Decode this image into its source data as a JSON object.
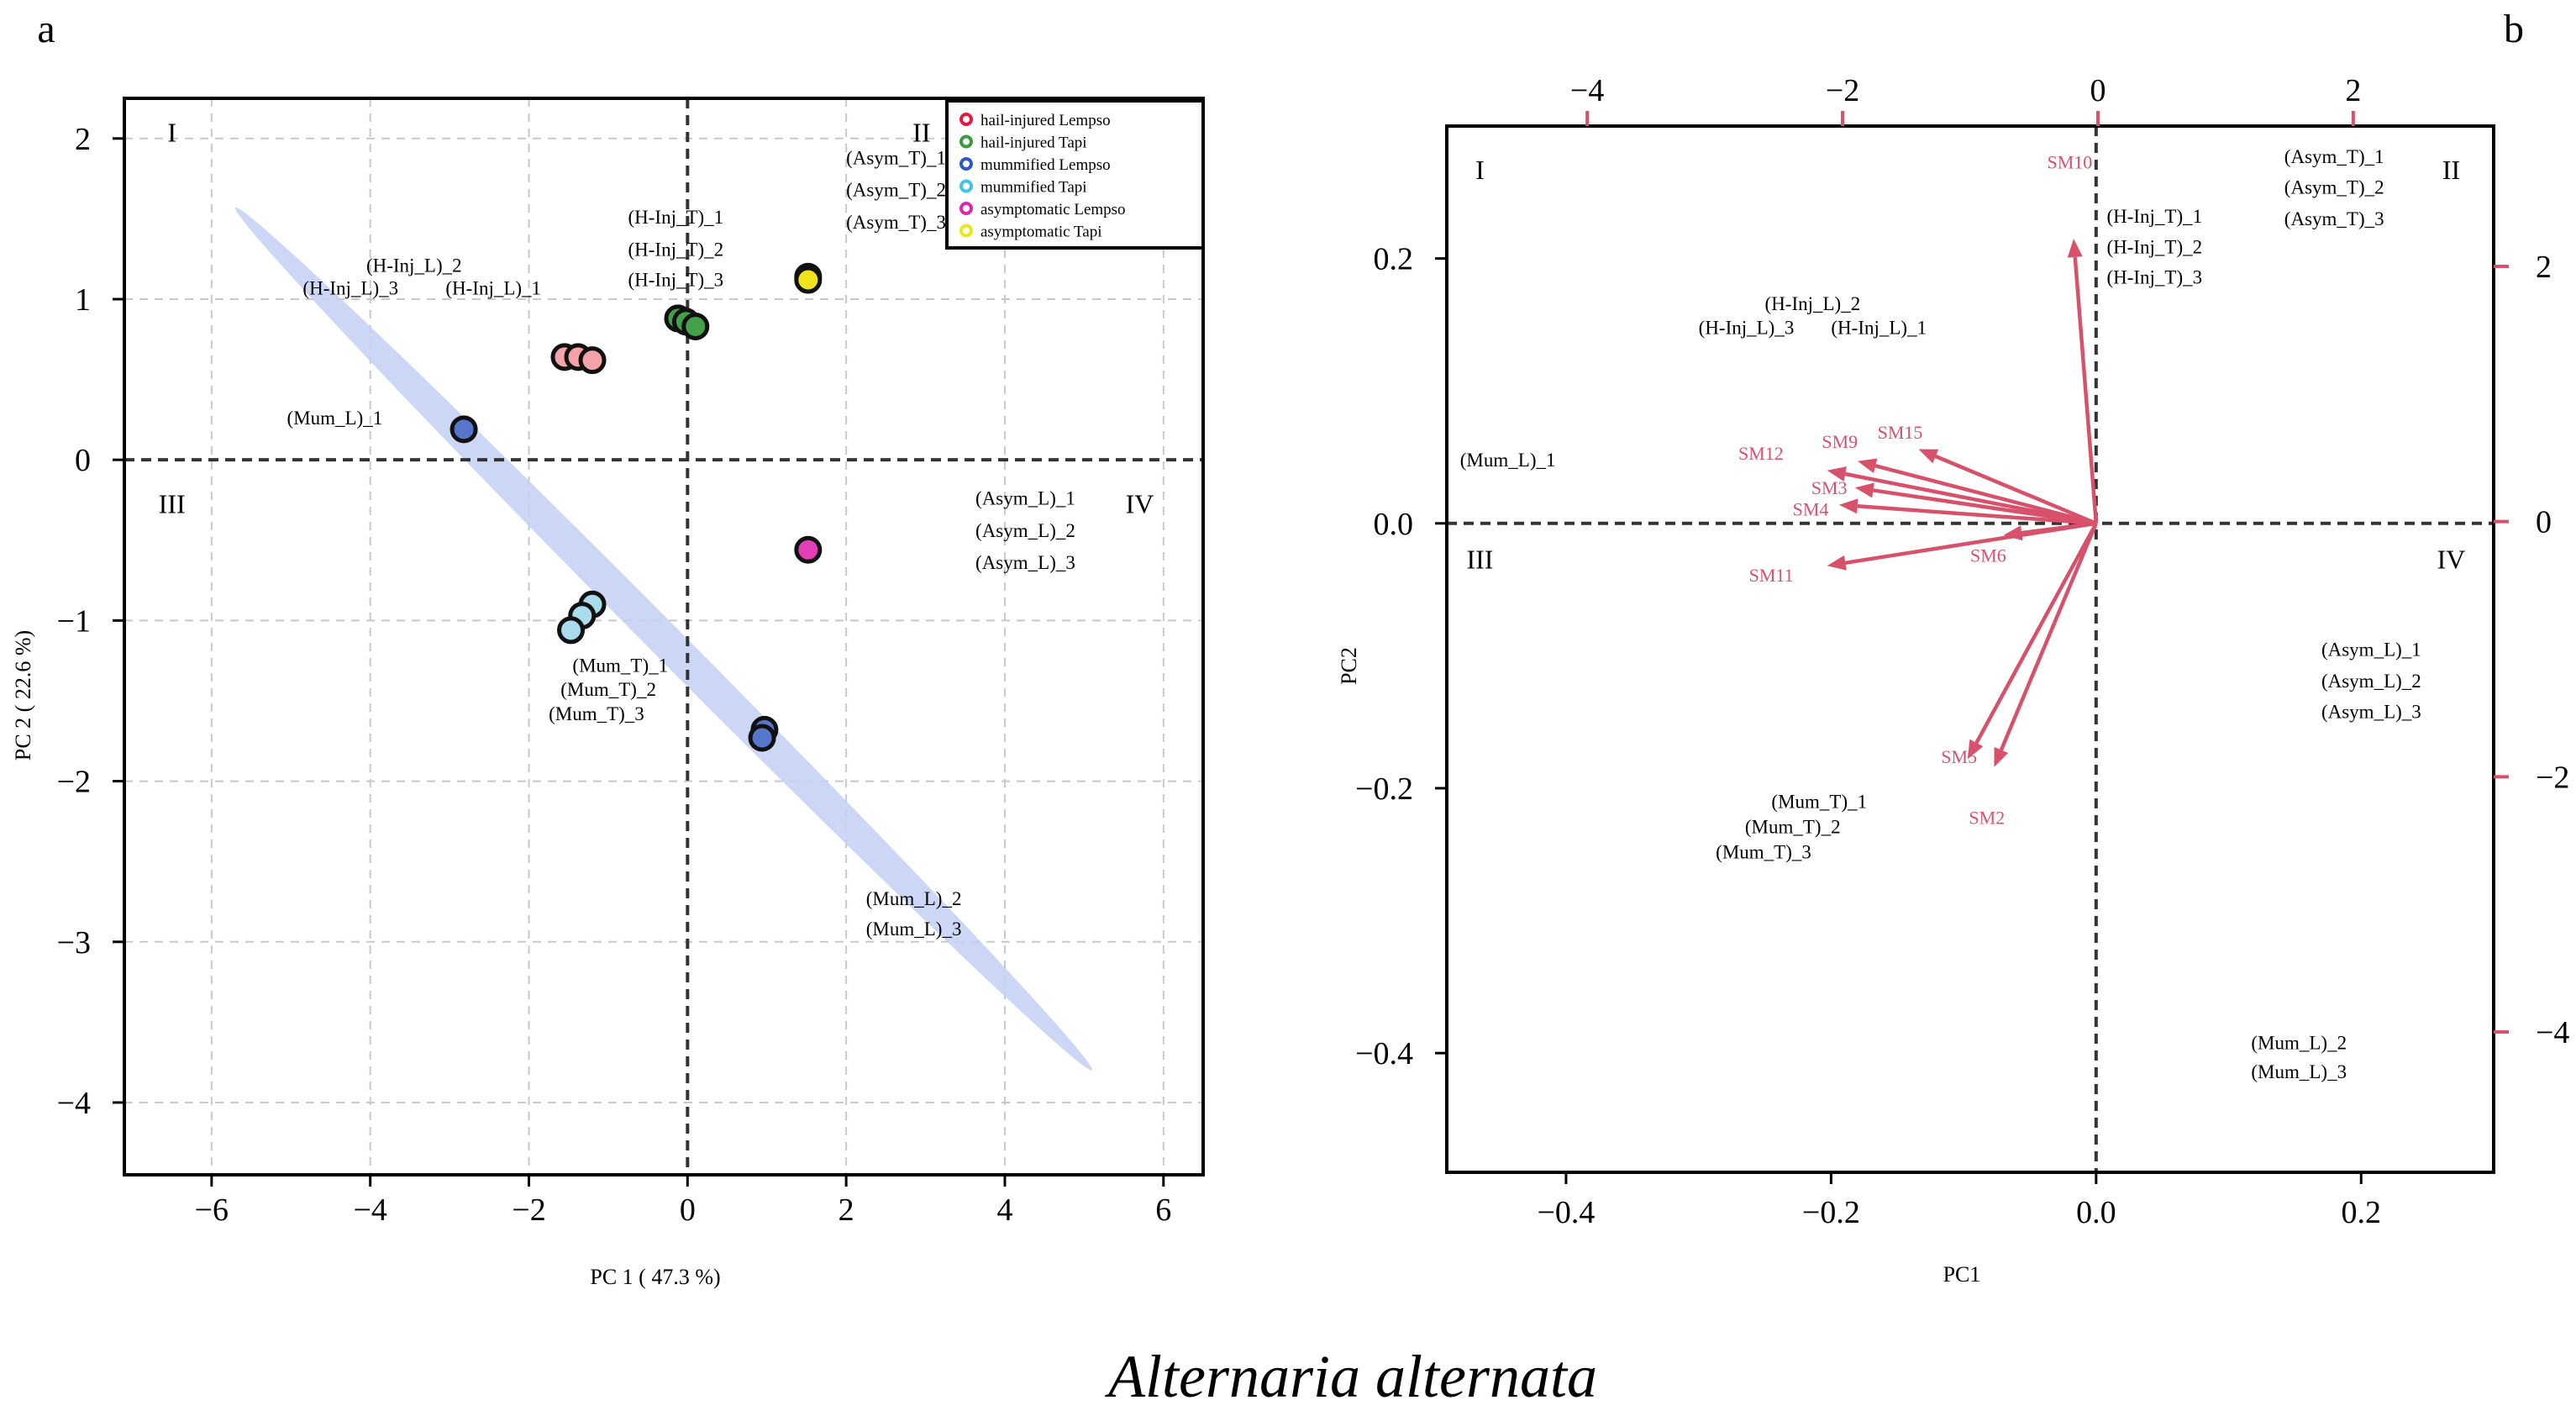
{
  "figure_caption": "Alternaria alternata",
  "colors": {
    "hail_injured_lempso": "#f4a3a8",
    "hail_injured_tapi": "#45a04a",
    "mummified_lempso": "#5677c9",
    "mummified_tapi": "#a8dcec",
    "asymptomatic_lempso": "#e23fb6",
    "asymptomatic_tapi": "#f0e21c",
    "ellipse": "#c3d0f4",
    "arrow": "#d8516b",
    "grid": "#c8c8c8"
  },
  "chart_data": [
    {
      "panel_label": "a",
      "type": "scatter",
      "title": "",
      "xlabel": "PC 1 ( 47.3 %)",
      "ylabel": "PC 2 ( 22.6 %)",
      "xlim": [
        -7.1,
        6.5
      ],
      "ylim": [
        -4.45,
        2.25
      ],
      "xticks": [
        -6,
        -4,
        -2,
        0,
        2,
        4,
        6
      ],
      "yticks": [
        2,
        1,
        0,
        -1,
        -2,
        -3,
        -4
      ],
      "xtick_labels": [
        "−6",
        "−4",
        "−2",
        "0",
        "2",
        "4",
        "6"
      ],
      "ytick_labels": [
        "2",
        "1",
        "0",
        "−1",
        "−2",
        "−3",
        "−4"
      ],
      "grid": true,
      "quadrants": [
        {
          "label": "I",
          "x": -6.5,
          "y": 1.98
        },
        {
          "label": "II",
          "x": 2.95,
          "y": 1.98
        },
        {
          "label": "III",
          "x": -6.5,
          "y": -0.33
        },
        {
          "label": "IV",
          "x": 5.7,
          "y": -0.33
        }
      ],
      "ellipse": {
        "x1": -5.7,
        "y1": 1.57,
        "x2": 5.1,
        "y2": -3.8
      },
      "legend_position": "top-right",
      "series": [
        {
          "name": "hail-injured Lempso",
          "color_key": "hail_injured_lempso",
          "legend_color": "#e8193d",
          "points": [
            {
              "x": -1.55,
              "y": 0.64
            },
            {
              "x": -1.38,
              "y": 0.64
            },
            {
              "x": -1.2,
              "y": 0.62
            }
          ]
        },
        {
          "name": "hail-injured  Tapi",
          "color_key": "hail_injured_tapi",
          "legend_color": "#3a9a3c",
          "points": [
            {
              "x": -0.12,
              "y": 0.88
            },
            {
              "x": -0.02,
              "y": 0.86
            },
            {
              "x": 0.1,
              "y": 0.83
            }
          ]
        },
        {
          "name": "mummified Lempso",
          "color_key": "mummified_lempso",
          "legend_color": "#2e56c6",
          "points": [
            {
              "x": -2.82,
              "y": 0.19
            },
            {
              "x": 0.97,
              "y": -1.68
            },
            {
              "x": 0.94,
              "y": -1.73
            }
          ]
        },
        {
          "name": "mummified Tapi",
          "color_key": "mummified_tapi",
          "legend_color": "#3ec6e8",
          "points": [
            {
              "x": -1.2,
              "y": -0.9
            },
            {
              "x": -1.33,
              "y": -0.97
            },
            {
              "x": -1.47,
              "y": -1.06
            }
          ]
        },
        {
          "name": "asymptomatic Lempso",
          "color_key": "asymptomatic_lempso",
          "legend_color": "#d829b0",
          "points": [
            {
              "x": 1.52,
              "y": -0.56
            }
          ]
        },
        {
          "name": "asymptomatic Tapi",
          "color_key": "asymptomatic_tapi",
          "legend_color": "#ece51a",
          "points": [
            {
              "x": 1.52,
              "y": 1.14
            },
            {
              "x": 1.52,
              "y": 1.12
            }
          ]
        }
      ],
      "annotations": [
        {
          "text": "(Asym_T)_1",
          "x": 2.0,
          "y": 1.84
        },
        {
          "text": "(Asym_T)_2",
          "x": 2.0,
          "y": 1.64
        },
        {
          "text": "(Asym_T)_3",
          "x": 2.0,
          "y": 1.44
        },
        {
          "text": "(H-Inj_T)_1",
          "x": -0.75,
          "y": 1.47
        },
        {
          "text": "(H-Inj_T)_2",
          "x": -0.75,
          "y": 1.27
        },
        {
          "text": "(H-Inj_T)_3",
          "x": -0.75,
          "y": 1.08
        },
        {
          "text": "(H-Inj_L)_2",
          "x": -4.05,
          "y": 1.17
        },
        {
          "text": "(H-Inj_L)_3",
          "x": -4.85,
          "y": 1.03
        },
        {
          "text": "(H-Inj_L)_1",
          "x": -3.05,
          "y": 1.03
        },
        {
          "text": "(Mum_L)_1",
          "x": -5.05,
          "y": 0.22
        },
        {
          "text": "(Asym_L)_1",
          "x": 3.63,
          "y": -0.28
        },
        {
          "text": "(Asym_L)_2",
          "x": 3.63,
          "y": -0.48
        },
        {
          "text": "(Asym_L)_3",
          "x": 3.63,
          "y": -0.68
        },
        {
          "text": "(Mum_T)_1",
          "x": -1.45,
          "y": -1.32
        },
        {
          "text": "(Mum_T)_2",
          "x": -1.6,
          "y": -1.47
        },
        {
          "text": "(Mum_T)_3",
          "x": -1.75,
          "y": -1.62
        },
        {
          "text": "(Mum_L)_2",
          "x": 2.25,
          "y": -2.77
        },
        {
          "text": "(Mum_L)_3",
          "x": 2.25,
          "y": -2.96
        }
      ]
    },
    {
      "panel_label": "b",
      "type": "biplot",
      "title": "",
      "xlabel": "PC1",
      "ylabel": "PC2",
      "xlim": [
        -0.49,
        0.3
      ],
      "ylim": [
        -0.49,
        0.3
      ],
      "xticks": [
        -0.4,
        -0.2,
        0.0,
        0.2
      ],
      "yticks": [
        0.2,
        0.0,
        -0.2,
        -0.4
      ],
      "xtick_labels": [
        "−0.4",
        "−0.2",
        "0.0",
        "0.2"
      ],
      "ytick_labels": [
        "0.2",
        "0.0",
        "−0.2",
        "−0.4"
      ],
      "secondary_axes": {
        "xlim": [
          -5.1,
          3.1
        ],
        "ylim": [
          -5.1,
          3.1
        ],
        "top_ticks": [
          -4,
          -2,
          0,
          2
        ],
        "top_tick_labels": [
          "−4",
          "−2",
          "0",
          "2"
        ],
        "right_ticks": [
          2,
          0,
          -2,
          -4
        ],
        "right_tick_labels": [
          "2",
          "0",
          "−2",
          "−4"
        ]
      },
      "quadrants": [
        {
          "label": "I",
          "x": -0.465,
          "y": 0.26
        },
        {
          "label": "II",
          "x": 0.268,
          "y": 0.26
        },
        {
          "label": "III",
          "x": -0.465,
          "y": -0.034
        },
        {
          "label": "IV",
          "x": 0.268,
          "y": -0.034
        }
      ],
      "arrows": [
        {
          "label": "SM10",
          "x": -0.017,
          "y": 0.215,
          "lx": -0.037,
          "ly": 0.268
        },
        {
          "label": "SM12",
          "x": -0.203,
          "y": 0.04,
          "lx": -0.27,
          "ly": 0.048
        },
        {
          "label": "SM9",
          "x": -0.18,
          "y": 0.047,
          "lx": -0.207,
          "ly": 0.057
        },
        {
          "label": "SM15",
          "x": -0.134,
          "y": 0.056,
          "lx": -0.165,
          "ly": 0.064
        },
        {
          "label": "SM3",
          "x": -0.182,
          "y": 0.027,
          "lx": -0.215,
          "ly": 0.022
        },
        {
          "label": "SM4",
          "x": -0.194,
          "y": 0.014,
          "lx": -0.229,
          "ly": 0.006
        },
        {
          "label": "SM11",
          "x": -0.203,
          "y": -0.032,
          "lx": -0.262,
          "ly": -0.044
        },
        {
          "label": "SM6",
          "x": -0.07,
          "y": -0.009,
          "lx": -0.095,
          "ly": -0.029
        },
        {
          "label": "SM5",
          "x": -0.097,
          "y": -0.178,
          "lx": -0.117,
          "ly": -0.181
        },
        {
          "label": "SM2",
          "x": -0.077,
          "y": -0.184,
          "lx": -0.096,
          "ly": -0.227
        }
      ],
      "annotations": [
        {
          "text": "(Asym_T)_1",
          "x": 0.142,
          "y": 0.272
        },
        {
          "text": "(Asym_T)_2",
          "x": 0.142,
          "y": 0.249
        },
        {
          "text": "(Asym_T)_3",
          "x": 0.142,
          "y": 0.225
        },
        {
          "text": "(H-Inj_T)_1",
          "x": 0.008,
          "y": 0.227
        },
        {
          "text": "(H-Inj_T)_2",
          "x": 0.008,
          "y": 0.204
        },
        {
          "text": "(H-Inj_T)_3",
          "x": 0.008,
          "y": 0.181
        },
        {
          "text": "(H-Inj_L)_2",
          "x": -0.25,
          "y": 0.161
        },
        {
          "text": "(H-Inj_L)_3",
          "x": -0.3,
          "y": 0.143
        },
        {
          "text": "(H-Inj_L)_1",
          "x": -0.2,
          "y": 0.143
        },
        {
          "text": "(Mum_L)_1",
          "x": -0.48,
          "y": 0.043
        },
        {
          "text": "(Asym_L)_1",
          "x": 0.17,
          "y": -0.1
        },
        {
          "text": "(Asym_L)_2",
          "x": 0.17,
          "y": -0.124
        },
        {
          "text": "(Asym_L)_3",
          "x": 0.17,
          "y": -0.147
        },
        {
          "text": "(Mum_T)_1",
          "x": -0.245,
          "y": -0.215
        },
        {
          "text": "(Mum_T)_2",
          "x": -0.265,
          "y": -0.234
        },
        {
          "text": "(Mum_T)_3",
          "x": -0.287,
          "y": -0.253
        },
        {
          "text": "(Mum_L)_2",
          "x": 0.117,
          "y": -0.397
        },
        {
          "text": "(Mum_L)_3",
          "x": 0.117,
          "y": -0.419
        }
      ]
    }
  ]
}
